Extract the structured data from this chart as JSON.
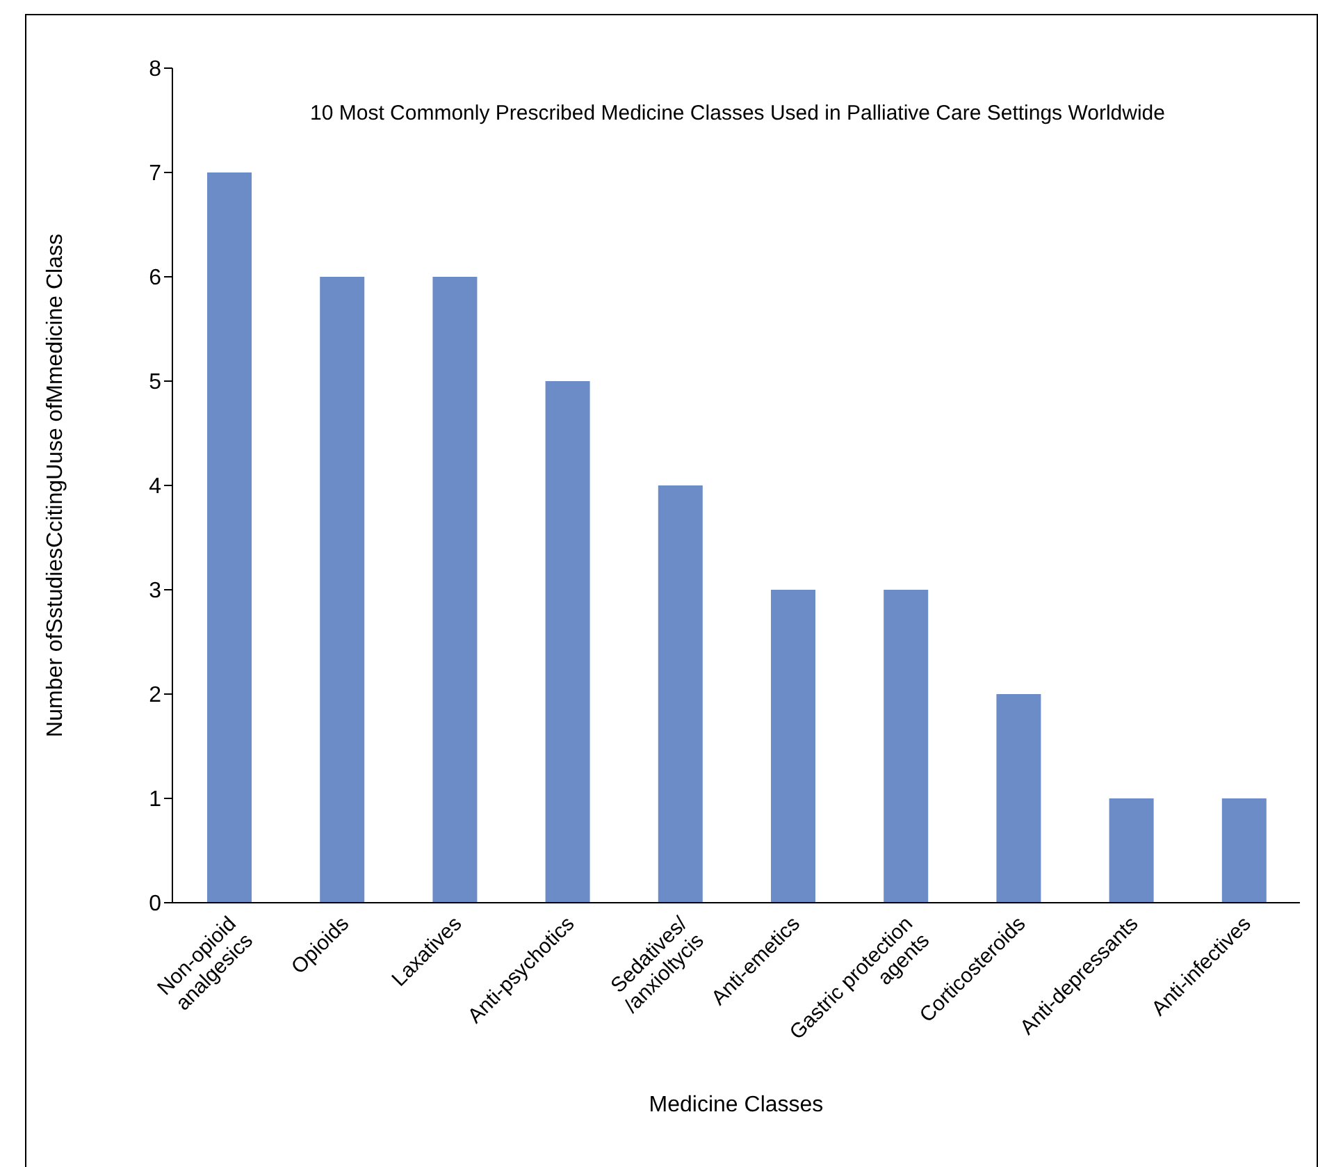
{
  "chart_data": {
    "type": "bar",
    "title": "10 Most Commonly Prescribed Medicine Classes Used in Palliative Care Settings Worldwide",
    "xlabel": "Medicine Classes",
    "ylabel": "Number ofSstudiesCcitingUuse ofMmedicine Class",
    "categories": [
      "Non-opioid\nanalgesics",
      "Opioids",
      "Laxatives",
      "Anti-psychotics",
      "Sedatives/\n/anxioltycis",
      "Anti-emetics",
      "Gastric protection\nagents",
      "Corticosteroids",
      "Anti-depressants",
      "Anti-infectives"
    ],
    "values": [
      7,
      6,
      6,
      5,
      4,
      3,
      3,
      2,
      1,
      1
    ],
    "color": "#6b8cc7",
    "ylim": [
      0,
      8
    ],
    "yticks": [
      0,
      1,
      2,
      3,
      4,
      5,
      6,
      7,
      8
    ],
    "grid": false
  }
}
